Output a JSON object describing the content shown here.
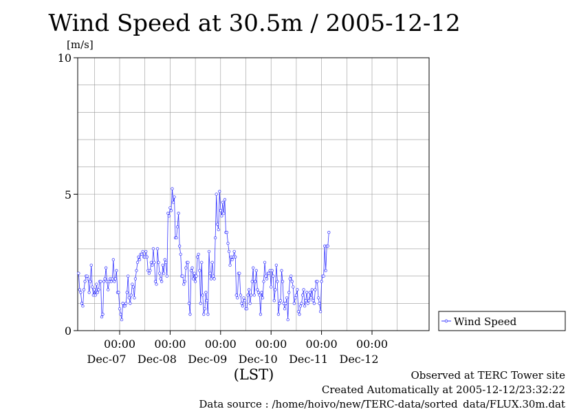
{
  "chart_data": {
    "type": "line",
    "title": "Wind Speed at 30.5m / 2005-12-12",
    "ylabel": "[m/s]",
    "xlabel": "(LST)",
    "ylim": [
      0,
      10
    ],
    "yticks": [
      "0",
      "5",
      "10"
    ],
    "xlim": [
      0,
      142
    ],
    "xticks": [
      {
        "x": 0,
        "time": "00:00",
        "date": "Dec-07"
      },
      {
        "x": 24,
        "time": "00:00",
        "date": "Dec-08"
      },
      {
        "x": 48,
        "time": "00:00",
        "date": "Dec-09"
      },
      {
        "x": 72,
        "time": "00:00",
        "date": "Dec-10"
      },
      {
        "x": 96,
        "time": "00:00",
        "date": "Dec-11"
      },
      {
        "x": 120,
        "time": "00:00",
        "date": "Dec-12"
      }
    ],
    "x_unit": "hours since 2005-12-07 00:00 LST",
    "grid": true,
    "legend": "right",
    "series_color": "#3333ff",
    "series": [
      {
        "name": "Wind Speed",
        "x_start": -24,
        "x_step": 0.5,
        "values": [
          1.9,
          2.0,
          1.4,
          1.8,
          1.4,
          1.7,
          1.5,
          1.5,
          1.9,
          2.1,
          1.5,
          1.4,
          1.0,
          0.9,
          1.5,
          1.8,
          2.0,
          2.0,
          1.9,
          1.4,
          1.8,
          2.4,
          1.6,
          1.3,
          1.5,
          1.3,
          1.7,
          1.4,
          1.5,
          1.8,
          1.8,
          0.5,
          0.6,
          1.8,
          1.9,
          2.3,
          1.8,
          1.5,
          1.8,
          1.9,
          1.8,
          1.9,
          2.6,
          1.8,
          1.9,
          2.2,
          1.4,
          1.4,
          0.8,
          0.6,
          0.4,
          1.0,
          0.9,
          0.9,
          1.0,
          1.4,
          2.0,
          1.2,
          1.0,
          1.3,
          1.7,
          1.6,
          1.2,
          1.9,
          2.2,
          2.5,
          2.7,
          2.6,
          2.8,
          2.8,
          2.9,
          2.7,
          2.7,
          2.9,
          2.7,
          2.2,
          2.1,
          2.2,
          2.5,
          2.4,
          3.0,
          2.5,
          1.8,
          1.7,
          3.0,
          2.5,
          2.1,
          1.9,
          1.8,
          2.4,
          2.1,
          2.6,
          2.5,
          2.0,
          4.3,
          4.2,
          4.5,
          4.4,
          5.2,
          4.7,
          4.9,
          3.4,
          3.4,
          3.8,
          4.3,
          3.1,
          2.8,
          2.0,
          2.0,
          1.7,
          1.8,
          2.3,
          2.5,
          2.5,
          1.0,
          0.6,
          2.2,
          2.3,
          1.9,
          2.1,
          1.8,
          2.0,
          2.7,
          2.8,
          2.2,
          1.0,
          2.5,
          1.3,
          0.6,
          0.8,
          1.4,
          1.1,
          0.6,
          2.9,
          2.1,
          1.9,
          2.5,
          2.0,
          1.9,
          3.4,
          5.0,
          3.9,
          3.7,
          5.1,
          4.4,
          4.2,
          4.7,
          4.3,
          4.8,
          3.6,
          3.6,
          3.2,
          2.9,
          2.4,
          2.7,
          2.6,
          2.7,
          2.9,
          2.7,
          1.3,
          1.2,
          2.1,
          2.1,
          1.3,
          1.0,
          0.9,
          1.2,
          1.1,
          0.8,
          0.8,
          1.3,
          1.5,
          1.0,
          1.3,
          1.8,
          2.3,
          1.3,
          1.8,
          2.2,
          1.5,
          1.4,
          1.3,
          0.6,
          1.4,
          1.2,
          1.8,
          2.5,
          2.0,
          1.9,
          2.1,
          2.1,
          2.2,
          1.6,
          2.2,
          2.0,
          1.1,
          1.5,
          2.4,
          1.8,
          0.6,
          1.0,
          1.1,
          2.2,
          1.8,
          1.0,
          0.8,
          1.0,
          1.2,
          0.4,
          1.4,
          1.9,
          2.0,
          1.8,
          1.6,
          1.0,
          1.2,
          1.3,
          1.5,
          0.7,
          0.6,
          0.9,
          1.0,
          1.3,
          1.5,
          0.9,
          1.1,
          1.4,
          1.0,
          1.1,
          1.4,
          1.2,
          1.5,
          1.1,
          1.0,
          1.5,
          1.8,
          1.8,
          1.2,
          1.0,
          0.7,
          1.8,
          2.0,
          2.0,
          3.1,
          2.2,
          3.1,
          3.1,
          3.6
        ]
      }
    ]
  },
  "footer": {
    "line1": "Observed at TERC Tower site",
    "line2": "Created Automatically at 2005-12-12/23:32:22",
    "line3": "Data source : /home/hoivo/new/TERC-data/sorted_data/FLUX.30m.dat"
  }
}
